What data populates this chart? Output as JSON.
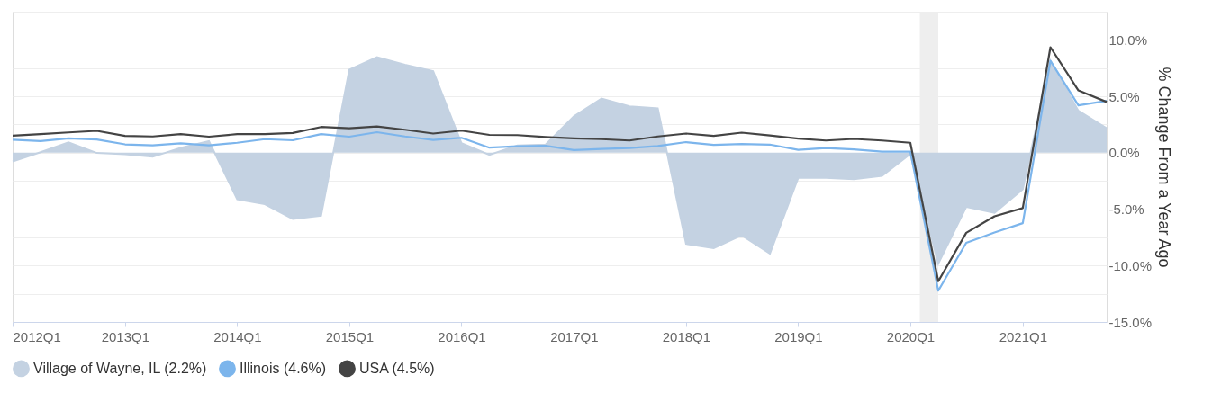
{
  "chart_data": {
    "type": "line",
    "ylabel": "% Change From a Year Ago",
    "x": [
      "2012-01",
      "2012-04",
      "2012-07",
      "2012-10",
      "2013-01",
      "2013-04",
      "2013-07",
      "2013-10",
      "2014-01",
      "2014-04",
      "2014-07",
      "2014-10",
      "2015-01",
      "2015-04",
      "2015-07",
      "2015-10",
      "2016-01",
      "2016-04",
      "2016-07",
      "2016-10",
      "2017-01",
      "2017-04",
      "2017-07",
      "2017-10",
      "2018-01",
      "2018-04",
      "2018-07",
      "2018-10",
      "2019-01",
      "2019-04",
      "2019-07",
      "2019-10",
      "2020-01",
      "2020-04",
      "2020-07",
      "2020-10",
      "2021-01",
      "2021-04",
      "2021-07",
      "2021-10"
    ],
    "series": [
      {
        "name": "Village of Wayne, IL (2.2%)",
        "type": "area",
        "color": "#c4d2e2",
        "values": [
          -0.77,
          0.05,
          0.91,
          -0.02,
          -0.14,
          -0.36,
          0.43,
          1.03,
          -4.12,
          -4.56,
          -5.88,
          -5.59,
          7.36,
          8.47,
          7.79,
          7.24,
          0.84,
          -0.19,
          0.65,
          0.72,
          3.24,
          4.8,
          4.12,
          3.93,
          -8.08,
          -8.47,
          -7.32,
          -8.94,
          -2.23,
          -2.23,
          -2.35,
          -2.06,
          -0.12,
          -9.83,
          -4.8,
          -5.32,
          -3.24,
          8.15,
          3.72,
          2.16
        ]
      },
      {
        "name": "Illinois (4.6%)",
        "color": "#7cb5ec",
        "values": [
          1.15,
          1.03,
          1.27,
          1.17,
          0.74,
          0.65,
          0.84,
          0.65,
          0.88,
          1.2,
          1.1,
          1.65,
          1.42,
          1.82,
          1.44,
          1.13,
          1.32,
          0.45,
          0.58,
          0.62,
          0.24,
          0.34,
          0.41,
          0.6,
          0.94,
          0.7,
          0.77,
          0.72,
          0.26,
          0.41,
          0.29,
          0.1,
          0.1,
          -12.23,
          -7.99,
          -7.07,
          -6.24,
          8.15,
          4.2,
          4.6
        ]
      },
      {
        "name": "USA (4.5%)",
        "color": "#444444",
        "values": [
          1.51,
          1.65,
          1.8,
          1.94,
          1.49,
          1.44,
          1.65,
          1.42,
          1.65,
          1.65,
          1.75,
          2.28,
          2.16,
          2.32,
          2.04,
          1.7,
          1.96,
          1.58,
          1.56,
          1.39,
          1.27,
          1.2,
          1.08,
          1.44,
          1.7,
          1.49,
          1.78,
          1.53,
          1.25,
          1.08,
          1.22,
          1.08,
          0.88,
          -11.39,
          -7.1,
          -5.63,
          -4.91,
          9.35,
          5.52,
          4.5
        ]
      }
    ],
    "xlim": [
      "2012-01",
      "2021-10"
    ],
    "xticks": [
      {
        "value": "2012-01",
        "label": "2012Q1"
      },
      {
        "value": "2013-01",
        "label": "2013Q1"
      },
      {
        "value": "2014-01",
        "label": "2014Q1"
      },
      {
        "value": "2015-01",
        "label": "2015Q1"
      },
      {
        "value": "2016-01",
        "label": "2016Q1"
      },
      {
        "value": "2017-01",
        "label": "2017Q1"
      },
      {
        "value": "2018-01",
        "label": "2018Q1"
      },
      {
        "value": "2019-01",
        "label": "2019Q1"
      },
      {
        "value": "2020-01",
        "label": "2020Q1"
      },
      {
        "value": "2021-01",
        "label": "2021Q1"
      }
    ],
    "ylim": [
      -15,
      12.5
    ],
    "yticks": [
      {
        "value": -15,
        "label": "-15.0%"
      },
      {
        "value": -12.5,
        "label": null
      },
      {
        "value": -10,
        "label": "-10.0%"
      },
      {
        "value": -7.5,
        "label": null
      },
      {
        "value": -5,
        "label": "-5.0%"
      },
      {
        "value": -2.5,
        "label": null
      },
      {
        "value": 0,
        "label": "0.0%"
      },
      {
        "value": 2.5,
        "label": null
      },
      {
        "value": 5,
        "label": "5.0%"
      },
      {
        "value": 7.5,
        "label": null
      },
      {
        "value": 10,
        "label": "10.0%"
      },
      {
        "value": 12.5,
        "label": null
      }
    ],
    "bands": [
      {
        "axis": "x",
        "from": "2020-02",
        "to": "2020-04",
        "color": "#eeeeee"
      }
    ],
    "grid": "y",
    "legend": "bottom",
    "marker": "none",
    "line_style": "solid"
  }
}
